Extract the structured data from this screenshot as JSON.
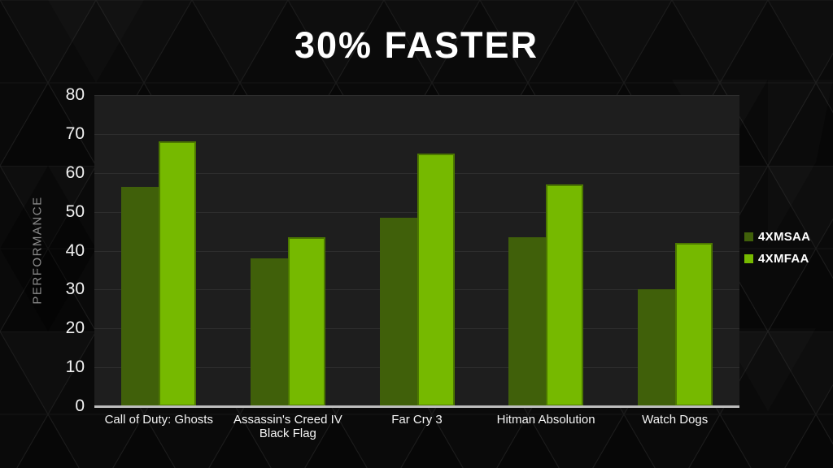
{
  "title": "30% FASTER",
  "chart_data": {
    "type": "bar",
    "categories": [
      "Call of Duty: Ghosts",
      "Assassin's Creed IV Black Flag",
      "Far Cry 3",
      "Hitman Absolution",
      "Watch Dogs"
    ],
    "series": [
      {
        "name": "4XMSAA",
        "color": "#40600a",
        "values": [
          56.5,
          38,
          48.5,
          43.5,
          30
        ]
      },
      {
        "name": "4XMFAA",
        "color": "#76b900",
        "values": [
          68,
          43.5,
          65,
          57,
          42
        ]
      }
    ],
    "title": "30% FASTER",
    "xlabel": "",
    "ylabel": "PERFORMANCE",
    "ylim": [
      0,
      80
    ],
    "yticks": [
      0,
      10,
      20,
      30,
      40,
      50,
      60,
      70,
      80
    ],
    "grid": true,
    "legend_position": "right"
  },
  "colors": {
    "background": "#0a0a0a",
    "plot_background": "#1e1e1e",
    "gridline": "#2e2e2e",
    "axis_line": "#bdbdbd",
    "title_text": "#ffffff",
    "tick_text": "#f2f2f2",
    "ylabel_text": "#8c8c8c",
    "series_msaa": "#40600a",
    "series_mfaa": "#76b900"
  }
}
